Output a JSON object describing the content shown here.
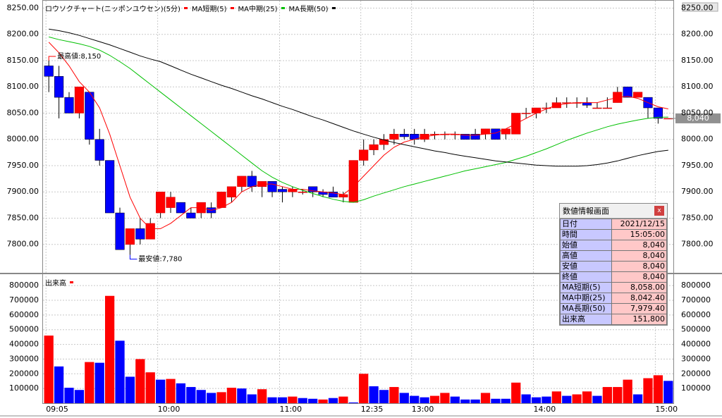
{
  "chart_data": [
    {
      "type": "candlestick",
      "title": "ロウソクチャート(ニッポンユウセン)(5分)",
      "legend_color": "#ff0000",
      "up_color": "#ff0000",
      "down_color": "#0000ff",
      "open": [
        8140,
        8120,
        8080,
        8050,
        8090,
        8000,
        7960,
        7860,
        7800,
        7830,
        7810,
        7860,
        7870,
        7880,
        7860,
        7860,
        7870,
        7870,
        7890,
        7910,
        7930,
        7910,
        7920,
        7905,
        7900,
        7900,
        7910,
        7900,
        7900,
        7890,
        7880,
        7960,
        7980,
        7990,
        8000,
        8010,
        8010,
        8000,
        8010,
        8010,
        8010,
        8010,
        8010,
        8010,
        8020,
        8010,
        8010,
        8050,
        8050,
        8060,
        8060,
        8070,
        8070,
        8070,
        8060,
        8060,
        8070,
        8100,
        8080,
        8080,
        8060,
        8040
      ],
      "high": [
        8150,
        8140,
        8090,
        8100,
        8090,
        8020,
        7960,
        7870,
        7830,
        7850,
        7850,
        7900,
        7900,
        7880,
        7870,
        7880,
        7880,
        7900,
        7910,
        7930,
        7940,
        7920,
        7920,
        7910,
        7910,
        7905,
        7910,
        7905,
        7910,
        7900,
        7960,
        8000,
        8000,
        8010,
        8020,
        8020,
        8020,
        8020,
        8015,
        8015,
        8015,
        8010,
        8020,
        8020,
        8020,
        8020,
        8050,
        8060,
        8060,
        8070,
        8080,
        8080,
        8080,
        8080,
        8070,
        8080,
        8100,
        8100,
        8090,
        8080,
        8060,
        8040
      ],
      "low": [
        8090,
        8040,
        8050,
        8040,
        7990,
        7950,
        7860,
        7790,
        7780,
        7800,
        7810,
        7850,
        7860,
        7860,
        7850,
        7850,
        7850,
        7870,
        7880,
        7900,
        7900,
        7890,
        7890,
        7880,
        7890,
        7895,
        7890,
        7890,
        7890,
        7880,
        7880,
        7950,
        7970,
        7980,
        7990,
        8000,
        7990,
        7995,
        8000,
        8000,
        8000,
        8000,
        8000,
        8000,
        8000,
        8000,
        8010,
        8040,
        8040,
        8050,
        8060,
        8060,
        8060,
        8060,
        8060,
        8060,
        8070,
        8080,
        8080,
        8040,
        8030,
        8040
      ],
      "close": [
        8120,
        8080,
        8050,
        8100,
        8000,
        7960,
        7860,
        7790,
        7830,
        7810,
        7840,
        7900,
        7890,
        7860,
        7850,
        7880,
        7860,
        7900,
        7910,
        7930,
        7910,
        7920,
        7900,
        7900,
        7905,
        7900,
        7900,
        7895,
        7890,
        7895,
        7960,
        7980,
        7990,
        8000,
        8010,
        8005,
        8000,
        8010,
        8010,
        8010,
        8010,
        8000,
        8000,
        8020,
        8000,
        8020,
        8050,
        8050,
        8060,
        8060,
        8070,
        8070,
        8070,
        8065,
        8060,
        8060,
        8090,
        8080,
        8090,
        8060,
        8040,
        8040
      ],
      "series": [
        {
          "name": "MA短期(5)",
          "color": "#ff0000",
          "values": [
            8185,
            8165,
            8140,
            8110,
            8090,
            8060,
            8010,
            7950,
            7890,
            7850,
            7830,
            7830,
            7840,
            7855,
            7870,
            7870,
            7865,
            7870,
            7880,
            7900,
            7910,
            7915,
            7915,
            7910,
            7905,
            7905,
            7902,
            7900,
            7898,
            7895,
            7910,
            7930,
            7950,
            7970,
            7985,
            7995,
            8000,
            8005,
            8008,
            8010,
            8010,
            8008,
            8008,
            8010,
            8012,
            8020,
            8030,
            8040,
            8050,
            8058,
            8065,
            8068,
            8070,
            8070,
            8070,
            8075,
            8080,
            8082,
            8078,
            8070,
            8062,
            8058
          ]
        },
        {
          "name": "MA中期(25)",
          "color": "#00c000",
          "values": [
            8195,
            8190,
            8186,
            8182,
            8177,
            8170,
            8160,
            8148,
            8135,
            8120,
            8105,
            8090,
            8075,
            8060,
            8045,
            8030,
            8015,
            8000,
            7985,
            7970,
            7955,
            7940,
            7928,
            7918,
            7910,
            7903,
            7897,
            7891,
            7886,
            7882,
            7880,
            7885,
            7892,
            7898,
            7904,
            7910,
            7915,
            7920,
            7925,
            7930,
            7935,
            7940,
            7944,
            7948,
            7952,
            7956,
            7962,
            7968,
            7975,
            7982,
            7990,
            7998,
            8005,
            8012,
            8018,
            8024,
            8029,
            8033,
            8037,
            8040,
            8042,
            8042.4
          ]
        },
        {
          "name": "MA長期(50)",
          "color": "#000000",
          "values": [
            8210,
            8207,
            8203,
            8198,
            8192,
            8186,
            8180,
            8173,
            8166,
            8159,
            8153,
            8148,
            8140,
            8132,
            8124,
            8117,
            8110,
            8103,
            8097,
            8090,
            8083,
            8077,
            8070,
            8063,
            8057,
            8050,
            8043,
            8037,
            8030,
            8023,
            8016,
            8010,
            8004,
            7999,
            7994,
            7990,
            7986,
            7982,
            7978,
            7975,
            7971,
            7968,
            7965,
            7962,
            7959,
            7957,
            7955,
            7953,
            7951,
            7950,
            7949,
            7949,
            7949,
            7950,
            7952,
            7955,
            7959,
            7964,
            7969,
            7973,
            7977,
            7979.4
          ]
        }
      ],
      "ylim": [
        7750,
        8260
      ],
      "yticks": [
        {
          "value": 7800,
          "label": "7800.00"
        },
        {
          "value": 7850,
          "label": "7850.00"
        },
        {
          "value": 7900,
          "label": "7900.00"
        },
        {
          "value": 7950,
          "label": "7950.00"
        },
        {
          "value": 8000,
          "label": "8000.00"
        },
        {
          "value": 8050,
          "label": "8050.00"
        },
        {
          "value": 8100,
          "label": "8100.00"
        },
        {
          "value": 8150,
          "label": "8150.00"
        },
        {
          "value": 8200,
          "label": "8200.00"
        },
        {
          "value": 8250,
          "label": "8250.00"
        }
      ],
      "grid": true,
      "annotations": [
        {
          "text": "最高値:8,150",
          "value": 8150,
          "color": "#ff0000"
        },
        {
          "text": "最安値:7,780",
          "value": 7780,
          "color": "#0000ff"
        }
      ],
      "last_price": {
        "value": 8040,
        "label": "8,040"
      }
    },
    {
      "type": "bar",
      "legend": "出来高",
      "legend_color": "#ff0000",
      "categories": [
        "09:05",
        null,
        null,
        null,
        null,
        null,
        null,
        null,
        null,
        null,
        null,
        "10:00",
        null,
        null,
        null,
        null,
        null,
        null,
        null,
        null,
        null,
        null,
        null,
        "11:00",
        null,
        null,
        null,
        null,
        null,
        null,
        null,
        "12:35",
        null,
        null,
        null,
        null,
        "13:00",
        null,
        null,
        null,
        null,
        null,
        null,
        null,
        null,
        null,
        null,
        null,
        "14:00",
        null,
        null,
        null,
        null,
        null,
        null,
        null,
        null,
        null,
        null,
        null,
        "15:00",
        null
      ],
      "values": [
        460000,
        250000,
        105000,
        90000,
        280000,
        275000,
        730000,
        425000,
        180000,
        300000,
        210000,
        160000,
        165000,
        135000,
        110000,
        90000,
        70000,
        75000,
        105000,
        100000,
        60000,
        95000,
        40000,
        40000,
        45000,
        35000,
        30000,
        25000,
        35000,
        45000,
        5000,
        200000,
        115000,
        90000,
        110000,
        70000,
        50000,
        40000,
        50000,
        70000,
        45000,
        25000,
        25000,
        70000,
        30000,
        30000,
        140000,
        60000,
        40000,
        45000,
        80000,
        50000,
        60000,
        80000,
        50000,
        110000,
        110000,
        160000,
        60000,
        170000,
        190000,
        151800
      ],
      "colors": [
        "#ff0000",
        "#0000ff",
        "#0000ff",
        "#0000ff",
        "#ff0000",
        "#0000ff",
        "#ff0000",
        "#0000ff",
        "#0000ff",
        "#ff0000",
        "#ff0000",
        "#0000ff",
        "#ff0000",
        "#0000ff",
        "#0000ff",
        "#0000ff",
        "#0000ff",
        "#ff0000",
        "#ff0000",
        "#0000ff",
        "#0000ff",
        "#ff0000",
        "#0000ff",
        "#0000ff",
        "#ff0000",
        "#0000ff",
        "#0000ff",
        "#ff0000",
        "#0000ff",
        "#ff0000",
        "#0000ff",
        "#ff0000",
        "#0000ff",
        "#0000ff",
        "#ff0000",
        "#0000ff",
        "#0000ff",
        "#0000ff",
        "#ff0000",
        "#ff0000",
        "#0000ff",
        "#0000ff",
        "#0000ff",
        "#ff0000",
        "#0000ff",
        "#0000ff",
        "#ff0000",
        "#0000ff",
        "#0000ff",
        "#0000ff",
        "#ff0000",
        "#0000ff",
        "#ff0000",
        "#ff0000",
        "#0000ff",
        "#ff0000",
        "#ff0000",
        "#ff0000",
        "#0000ff",
        "#ff0000",
        "#ff0000",
        "#0000ff"
      ],
      "ylim": [
        0,
        863000
      ],
      "yticks": [
        100000,
        200000,
        300000,
        400000,
        500000,
        600000,
        700000,
        800000
      ],
      "grid": true
    }
  ],
  "data_window": {
    "title": "数値情報画面",
    "close": "x",
    "rows": [
      [
        "日付",
        "2021/12/15"
      ],
      [
        "時間",
        "15:05:00"
      ],
      [
        "始値",
        "8,040"
      ],
      [
        "高値",
        "8,040"
      ],
      [
        "安値",
        "8,040"
      ],
      [
        "終値",
        "8,040"
      ],
      [
        "MA短期(5)",
        "8,058.00"
      ],
      [
        "MA中期(25)",
        "8,042.40"
      ],
      [
        "MA長期(50)",
        "7,979.40"
      ],
      [
        "出来高",
        "151,800"
      ]
    ]
  }
}
